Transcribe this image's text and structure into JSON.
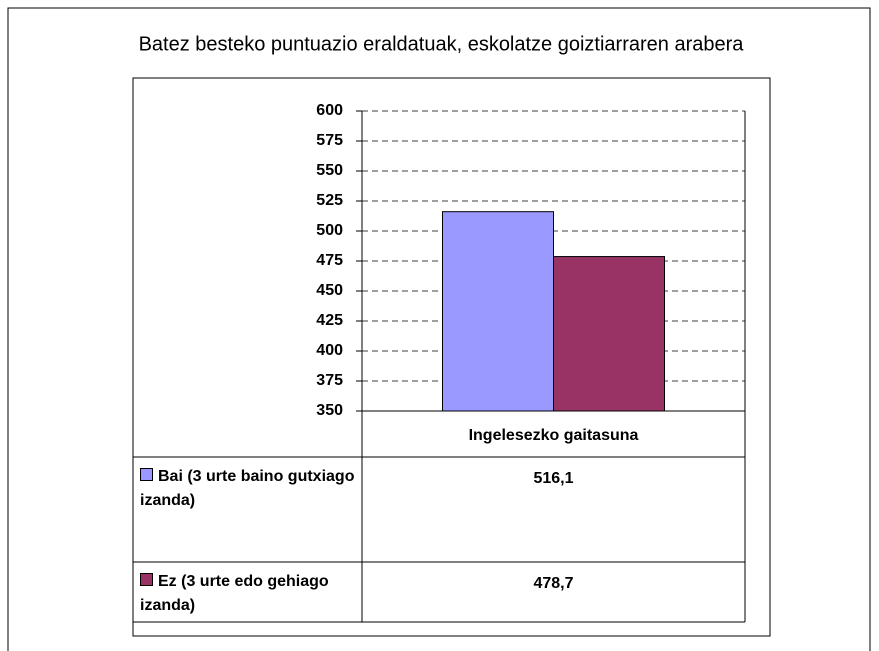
{
  "chart_data": {
    "type": "bar",
    "title": "Batez besteko puntuazio eraldatuak, eskolatze goiztiarraren arabera",
    "categories": [
      "Ingelesezko gaitasuna"
    ],
    "series": [
      {
        "name": "Bai (3 urte baino gutxiago izanda)",
        "color": "#9999ff",
        "values": [
          516.1
        ],
        "value_labels": [
          "516,1"
        ]
      },
      {
        "name": "Ez (3 urte edo gehiago izanda)",
        "color": "#993366",
        "values": [
          478.7
        ],
        "value_labels": [
          "478,7"
        ]
      }
    ],
    "ylim": [
      350,
      600
    ],
    "yticks": [
      350,
      375,
      400,
      425,
      450,
      475,
      500,
      525,
      550,
      575,
      600
    ],
    "grid": true
  }
}
